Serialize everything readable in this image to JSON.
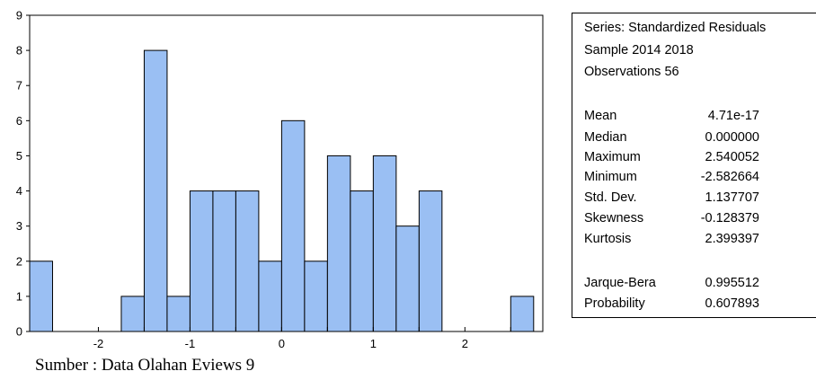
{
  "chart_data": {
    "type": "bar",
    "series_name": "",
    "bin_width": 0.25,
    "bins": [
      {
        "start": -2.75,
        "end": -2.5,
        "count": 2
      },
      {
        "start": -2.5,
        "end": -2.25,
        "count": 0
      },
      {
        "start": -2.25,
        "end": -2.0,
        "count": 0
      },
      {
        "start": -2.0,
        "end": -1.75,
        "count": 0
      },
      {
        "start": -1.75,
        "end": -1.5,
        "count": 1
      },
      {
        "start": -1.5,
        "end": -1.25,
        "count": 8
      },
      {
        "start": -1.25,
        "end": -1.0,
        "count": 1
      },
      {
        "start": -1.0,
        "end": -0.75,
        "count": 4
      },
      {
        "start": -0.75,
        "end": -0.5,
        "count": 4
      },
      {
        "start": -0.5,
        "end": -0.25,
        "count": 4
      },
      {
        "start": -0.25,
        "end": 0.0,
        "count": 2
      },
      {
        "start": 0.0,
        "end": 0.25,
        "count": 6
      },
      {
        "start": 0.25,
        "end": 0.5,
        "count": 2
      },
      {
        "start": 0.5,
        "end": 0.75,
        "count": 5
      },
      {
        "start": 0.75,
        "end": 1.0,
        "count": 4
      },
      {
        "start": 1.0,
        "end": 1.25,
        "count": 5
      },
      {
        "start": 1.25,
        "end": 1.5,
        "count": 3
      },
      {
        "start": 1.5,
        "end": 1.75,
        "count": 4
      },
      {
        "start": 1.75,
        "end": 2.0,
        "count": 0
      },
      {
        "start": 2.0,
        "end": 2.25,
        "count": 0
      },
      {
        "start": 2.25,
        "end": 2.5,
        "count": 0
      },
      {
        "start": 2.5,
        "end": 2.75,
        "count": 1
      }
    ],
    "xlim": [
      -2.75,
      2.85
    ],
    "ylim": [
      0,
      9
    ],
    "x_ticks": [
      -2,
      -1,
      0,
      1,
      2
    ],
    "y_ticks": [
      0,
      1,
      2,
      3,
      4,
      5,
      6,
      7,
      8,
      9
    ],
    "bar_color": "#9ABFF3",
    "grid": false,
    "title": "",
    "xlabel": "",
    "ylabel": ""
  },
  "stats_panel": {
    "series_line": "Series: Standardized Residuals",
    "sample_line": "Sample 2014 2018",
    "observations_line": "Observations 56",
    "rows": [
      {
        "label": "Mean",
        "value": "4.71e-17"
      },
      {
        "label": "Median",
        "value": "0.000000"
      },
      {
        "label": "Maximum",
        "value": "2.540052"
      },
      {
        "label": "Minimum",
        "value": "-2.582664"
      },
      {
        "label": "Std. Dev.",
        "value": "1.137707"
      },
      {
        "label": "Skewness",
        "value": "-0.128379"
      },
      {
        "label": "Kurtosis",
        "value": "2.399397"
      }
    ],
    "test_rows": [
      {
        "label": "Jarque-Bera",
        "value": "0.995512"
      },
      {
        "label": "Probability",
        "value": "0.607893"
      }
    ]
  },
  "source_note": "Sumber : Data Olahan Eviews 9"
}
